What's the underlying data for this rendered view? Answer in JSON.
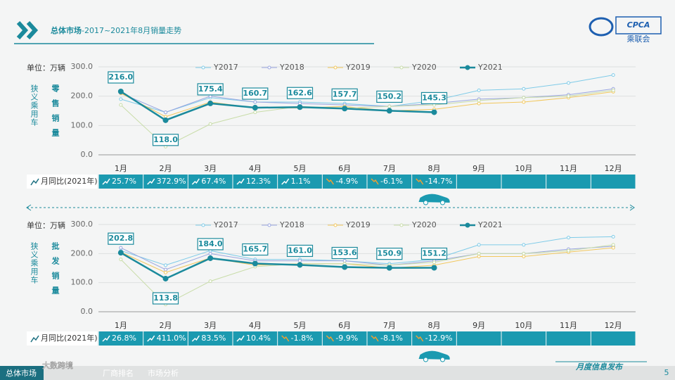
{
  "header": {
    "title_bold": "总体市场",
    "title_rest": "-2017~2021年8月销量走势",
    "logo_text": "CPCA",
    "logo_sub": "乘联会"
  },
  "chart_data": [
    {
      "type": "line",
      "unit": "单位：万辆",
      "side_label": "狭义乘用车",
      "title": "零售销量",
      "categories": [
        "1月",
        "2月",
        "3月",
        "4月",
        "5月",
        "6月",
        "7月",
        "8月",
        "9月",
        "10月",
        "11月",
        "12月"
      ],
      "ylim": [
        0,
        300
      ],
      "yticks": [
        {
          "value": 0,
          "label": "0.0"
        },
        {
          "value": 100,
          "label": "100.0"
        },
        {
          "value": 200,
          "label": "200.0"
        },
        {
          "value": 300,
          "label": "300.0"
        }
      ],
      "grid": true,
      "series": [
        {
          "name": "Y2017",
          "color": "#7fcbe8",
          "values": [
            190,
            145,
            195,
            180,
            180,
            175,
            165,
            185,
            220,
            225,
            245,
            272
          ]
        },
        {
          "name": "Y2018",
          "color": "#9aa6e0",
          "values": [
            210,
            145,
            200,
            180,
            175,
            170,
            165,
            175,
            190,
            195,
            205,
            225
          ]
        },
        {
          "name": "Y2019",
          "color": "#f2c75c",
          "values": [
            210,
            130,
            180,
            160,
            160,
            165,
            150,
            155,
            175,
            180,
            195,
            215
          ]
        },
        {
          "name": "Y2020",
          "color": "#c8dca8",
          "values": [
            170,
            28,
            105,
            145,
            165,
            160,
            165,
            170,
            185,
            195,
            200,
            220
          ]
        },
        {
          "name": "Y2021",
          "color": "#1b8a9c",
          "values": [
            216,
            118,
            175.4,
            160.7,
            162.6,
            157.7,
            150.2,
            145.3,
            null,
            null,
            null,
            null
          ],
          "value_labels": [
            "216.0",
            "118.0",
            "175.4",
            "160.7",
            "162.6",
            "157.7",
            "150.2",
            "145.3",
            null,
            null,
            null,
            null
          ]
        }
      ],
      "yoy": {
        "label": "月同比(2021年)",
        "values": [
          25.7,
          372.9,
          67.4,
          12.3,
          1.1,
          -4.9,
          -6.1,
          -14.7
        ],
        "value_labels": [
          "25.7%",
          "372.9%",
          "67.4%",
          "12.3%",
          "1.1%",
          "-4.9%",
          "-6.1%",
          "-14.7%"
        ]
      }
    },
    {
      "type": "line",
      "unit": "单位：万辆",
      "side_label": "狭义乘用车",
      "title": "批发销量",
      "categories": [
        "1月",
        "2月",
        "3月",
        "4月",
        "5月",
        "6月",
        "7月",
        "8月",
        "9月",
        "10月",
        "11月",
        "12月"
      ],
      "ylim": [
        0,
        300
      ],
      "yticks": [
        {
          "value": 0,
          "label": "0.0"
        },
        {
          "value": 100,
          "label": "100.0"
        },
        {
          "value": 200,
          "label": "200.0"
        },
        {
          "value": 300,
          "label": "300.0"
        }
      ],
      "grid": true,
      "series": [
        {
          "name": "Y2017",
          "color": "#7fcbe8",
          "values": [
            210,
            160,
            210,
            180,
            180,
            175,
            165,
            180,
            230,
            230,
            255,
            258
          ]
        },
        {
          "name": "Y2018",
          "color": "#9aa6e0",
          "values": [
            220,
            145,
            200,
            175,
            175,
            175,
            160,
            175,
            200,
            200,
            215,
            225
          ]
        },
        {
          "name": "Y2019",
          "color": "#f2c75c",
          "values": [
            205,
            135,
            185,
            160,
            165,
            165,
            150,
            160,
            190,
            190,
            205,
            220
          ]
        },
        {
          "name": "Y2020",
          "color": "#c8dca8",
          "values": [
            180,
            25,
            105,
            155,
            165,
            165,
            160,
            170,
            200,
            200,
            210,
            230
          ]
        },
        {
          "name": "Y2021",
          "color": "#1b8a9c",
          "values": [
            202.8,
            113.8,
            184,
            165.7,
            161,
            153.6,
            150.9,
            151.2,
            null,
            null,
            null,
            null
          ],
          "value_labels": [
            "202.8",
            "113.8",
            "184.0",
            "165.7",
            "161.0",
            "153.6",
            "150.9",
            "151.2",
            null,
            null,
            null,
            null
          ]
        }
      ],
      "yoy": {
        "label": "月同比(2021年)",
        "values": [
          26.8,
          411,
          83.5,
          10.4,
          -1.8,
          -9.9,
          -8.1,
          -12.9
        ],
        "value_labels": [
          "26.8%",
          "411.0%",
          "83.5%",
          "10.4%",
          "-1.8%",
          "-9.9%",
          "-8.1%",
          "-12.9%"
        ]
      }
    }
  ],
  "footer": {
    "tabs": [
      "总体市场",
      "厂商排名",
      "市场分析"
    ],
    "right": "月度信息发布",
    "page": "5",
    "watermark": "大数跨境"
  }
}
